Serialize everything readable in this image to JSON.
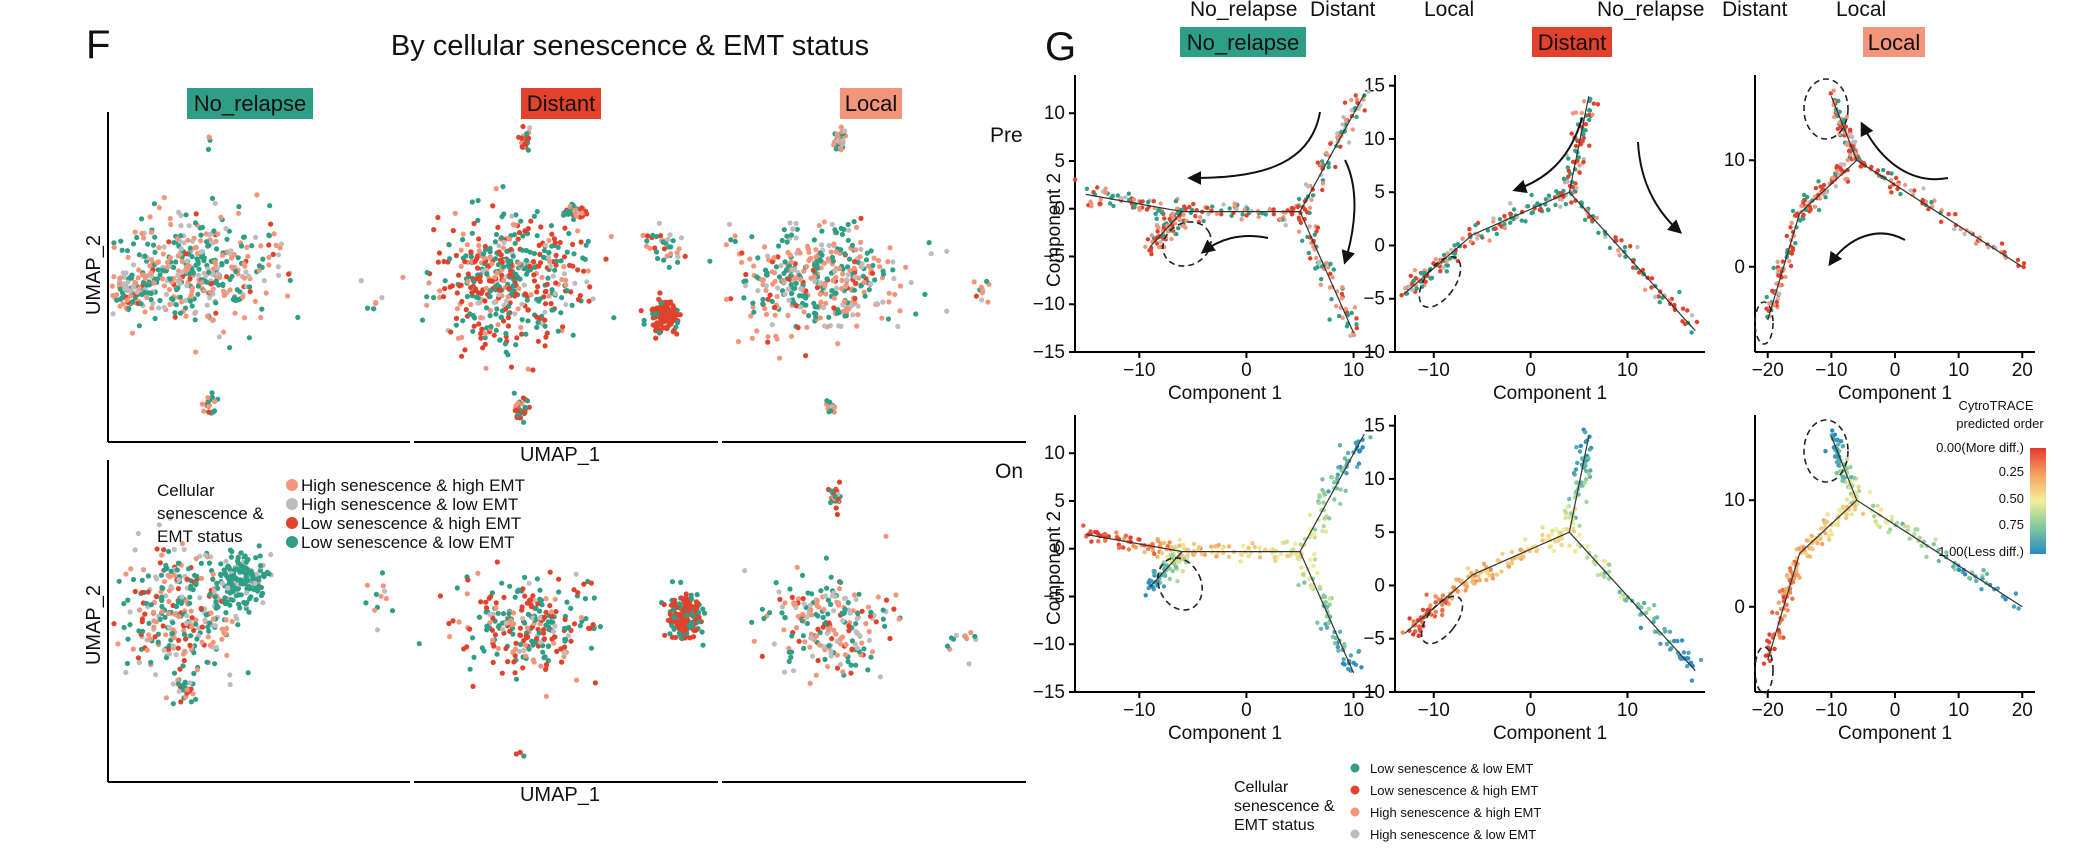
{
  "colors": {
    "no_relapse": "#2e9f86",
    "distant": "#e2412b",
    "local": "#f2957b",
    "grey": "#bdbdbd",
    "low_low": "#2e9f86",
    "low_high": "#e2412b",
    "high_high": "#f2957b",
    "high_low": "#bdbdbd"
  },
  "top_labels": [
    "No_relapse",
    "Distant",
    "Local",
    "No_relapse",
    "Distant",
    "Local"
  ],
  "panel_f": {
    "letter": "F",
    "title": "By cellular senescence & EMT status",
    "strips": [
      "No_relapse",
      "Distant",
      "Local"
    ],
    "row_labels": [
      "Pre",
      "On"
    ],
    "xlabel": "UMAP_1",
    "ylabel": "UMAP_2",
    "legend": {
      "title_lines": [
        "Cellular",
        "senescence &",
        "EMT status"
      ],
      "items": [
        {
          "label": "High senescence & high EMT",
          "color": "#f2957b"
        },
        {
          "label": "High senescence & low EMT",
          "color": "#bdbdbd"
        },
        {
          "label": "Low senescence & high EMT",
          "color": "#e2412b"
        },
        {
          "label": "Low senescence & low EMT",
          "color": "#2e9f86"
        }
      ]
    }
  },
  "panel_g": {
    "letter": "G",
    "strips": [
      "No_relapse",
      "Distant",
      "Local"
    ],
    "xlabel": "Component 1",
    "ylabel": "Component 2",
    "colorbar": {
      "title_lines": [
        "CytroTRACE",
        "predicted order"
      ],
      "ticks": [
        "0.00(More diff.)",
        "0.25",
        "0.50",
        "0.75",
        "1.00(Less diff.)"
      ]
    },
    "legend": {
      "title_lines": [
        "Cellular",
        "senescence &",
        "EMT status"
      ],
      "items": [
        {
          "label": "Low senescence & low EMT",
          "color": "#2e9f86"
        },
        {
          "label": "Low senescence & high EMT",
          "color": "#e2412b"
        },
        {
          "label": "High senescence & high EMT",
          "color": "#f2957b"
        },
        {
          "label": "High senescence & low EMT",
          "color": "#bdbdbd"
        }
      ]
    }
  },
  "chart_data": [
    {
      "type": "scatter",
      "panel": "G-top",
      "facets": [
        {
          "strip": "No_relapse",
          "xlim": [
            -16,
            12
          ],
          "ylim": [
            -15,
            14
          ],
          "xticks": [
            -10,
            0,
            10
          ],
          "yticks": [
            -15,
            -10,
            -5,
            0,
            5,
            10
          ],
          "branches": [
            [
              [
                -15,
                1.5
              ],
              [
                -6,
                -0.3
              ],
              [
                5,
                -0.3
              ]
            ],
            [
              [
                5,
                -0.3
              ],
              [
                11,
                12
              ]
            ],
            [
              [
                5,
                -0.3
              ],
              [
                10,
                -13
              ]
            ],
            [
              [
                -6,
                -0.3
              ],
              [
                -9,
                -4
              ]
            ]
          ]
        },
        {
          "strip": "Distant",
          "xlim": [
            -14,
            18
          ],
          "ylim": [
            -10,
            16
          ],
          "xticks": [
            -10,
            0,
            10
          ],
          "yticks": [
            -10,
            -5,
            0,
            5,
            10,
            15
          ],
          "branches": [
            [
              [
                -13,
                -4.5
              ],
              [
                -6,
                1
              ],
              [
                4,
                5
              ]
            ],
            [
              [
                4,
                5
              ],
              [
                6,
                14
              ]
            ],
            [
              [
                4,
                5
              ],
              [
                17,
                -8
              ]
            ]
          ]
        },
        {
          "strip": "Local",
          "xlim": [
            -22,
            22
          ],
          "ylim": [
            -8,
            18
          ],
          "xticks": [
            -20,
            -10,
            0,
            10,
            20
          ],
          "yticks": [
            0,
            10
          ],
          "branches": [
            [
              [
                -20,
                -5
              ],
              [
                -15,
                5
              ],
              [
                -6,
                10
              ]
            ],
            [
              [
                -6,
                10
              ],
              [
                -10,
                16
              ]
            ],
            [
              [
                -6,
                10
              ],
              [
                20,
                0
              ]
            ]
          ]
        }
      ],
      "color_by": "Cellular senescence & EMT status"
    },
    {
      "type": "scatter",
      "panel": "G-bottom",
      "facets": [
        {
          "strip": "No_relapse",
          "xlim": [
            -16,
            12
          ],
          "ylim": [
            -15,
            14
          ],
          "xticks": [
            -10,
            0,
            10
          ],
          "yticks": [
            -15,
            -10,
            -5,
            0,
            5,
            10
          ]
        },
        {
          "strip": "Distant",
          "xlim": [
            -14,
            18
          ],
          "ylim": [
            -10,
            16
          ],
          "xticks": [
            -10,
            0,
            10
          ],
          "yticks": [
            -10,
            -5,
            0,
            5,
            10,
            15
          ]
        },
        {
          "strip": "Local",
          "xlim": [
            -22,
            22
          ],
          "ylim": [
            -8,
            18
          ],
          "xticks": [
            -20,
            -10,
            0,
            10,
            20
          ],
          "yticks": [
            0,
            10
          ]
        }
      ],
      "color_by": "CytroTRACE predicted order",
      "color_range": [
        0,
        1
      ]
    }
  ]
}
